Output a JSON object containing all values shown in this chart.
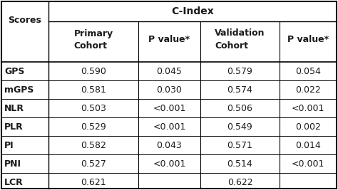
{
  "title_col1": "Scores",
  "header_top": "C-Index",
  "headers": [
    "Primary\nCohort",
    "P value*",
    "Validation\nCohort",
    "P value*"
  ],
  "rows": [
    [
      "GPS",
      "0.590",
      "0.045",
      "0.579",
      "0.054"
    ],
    [
      "mGPS",
      "0.581",
      "0.030",
      "0.574",
      "0.022"
    ],
    [
      "NLR",
      "0.503",
      "<0.001",
      "0.506",
      "<0.001"
    ],
    [
      "PLR",
      "0.529",
      "<0.001",
      "0.549",
      "0.002"
    ],
    [
      "PI",
      "0.582",
      "0.043",
      "0.571",
      "0.014"
    ],
    [
      "PNI",
      "0.527",
      "<0.001",
      "0.514",
      "<0.001"
    ],
    [
      "LCR",
      "0.621",
      "",
      "0.622",
      ""
    ]
  ],
  "bg_color": "#ffffff",
  "text_color": "#1a1a1a",
  "line_color": "#000000",
  "font_size": 9.0,
  "fig_width": 4.74,
  "fig_height": 2.67,
  "dpi": 100
}
